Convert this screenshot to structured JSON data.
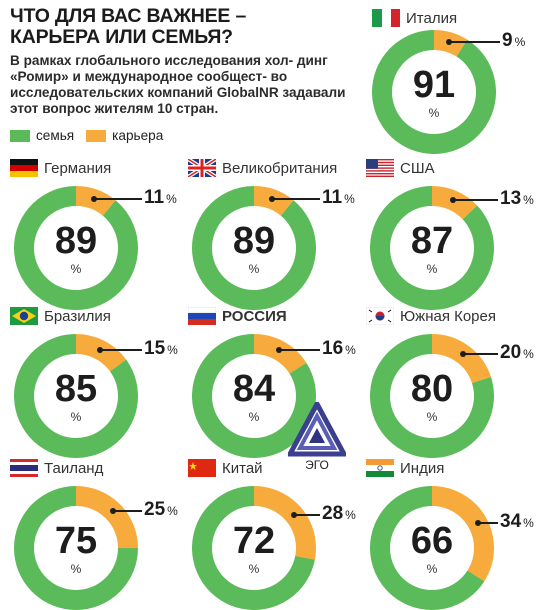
{
  "title_line1": "ЧТО ДЛЯ ВАС ВАЖНЕЕ –",
  "title_line2": "КАРЬЕРА ИЛИ СЕМЬЯ?",
  "description": "В рамках глобального исследования хол- динг «Ромир» и международное сообщест- во исследовательских компаний GlobalNR задавали этот вопрос жителям 10 стран.",
  "legend": [
    {
      "label": "семья",
      "color": "#5bbb5b"
    },
    {
      "label": "карьера",
      "color": "#f6ab3c"
    }
  ],
  "logo_text": "ЭГО",
  "percent_sign": "%",
  "colors": {
    "family": "#5bbb5b",
    "career": "#f6ab3c"
  },
  "chart_data": {
    "type": "pie",
    "series": [
      {
        "name": "семья",
        "values": [
          91,
          89,
          89,
          87,
          85,
          84,
          80,
          75,
          72,
          66
        ]
      },
      {
        "name": "карьера",
        "values": [
          9,
          11,
          11,
          13,
          15,
          16,
          20,
          25,
          28,
          34
        ]
      }
    ],
    "categories": [
      "Италия",
      "Германия",
      "Великобритания",
      "США",
      "Бразилия",
      "РОССИЯ",
      "Южная Корея",
      "Таиланд",
      "Китай",
      "Индия"
    ],
    "items": [
      {
        "country": "Италия",
        "family": 91,
        "career": 9,
        "flag": "italy-flag"
      },
      {
        "country": "Германия",
        "family": 89,
        "career": 11,
        "flag": "germany-flag"
      },
      {
        "country": "Великобритания",
        "family": 89,
        "career": 11,
        "flag": "uk-flag"
      },
      {
        "country": "США",
        "family": 87,
        "career": 13,
        "flag": "usa-flag"
      },
      {
        "country": "Бразилия",
        "family": 85,
        "career": 15,
        "flag": "brazil-flag"
      },
      {
        "country": "РОССИЯ",
        "family": 84,
        "career": 16,
        "flag": "russia-flag"
      },
      {
        "country": "Южная Корея",
        "family": 80,
        "career": 20,
        "flag": "korea-flag"
      },
      {
        "country": "Таиланд",
        "family": 75,
        "career": 25,
        "flag": "thailand-flag"
      },
      {
        "country": "Китай",
        "family": 72,
        "career": 28,
        "flag": "china-flag"
      },
      {
        "country": "Индия",
        "family": 66,
        "career": 34,
        "flag": "india-flag"
      }
    ]
  }
}
